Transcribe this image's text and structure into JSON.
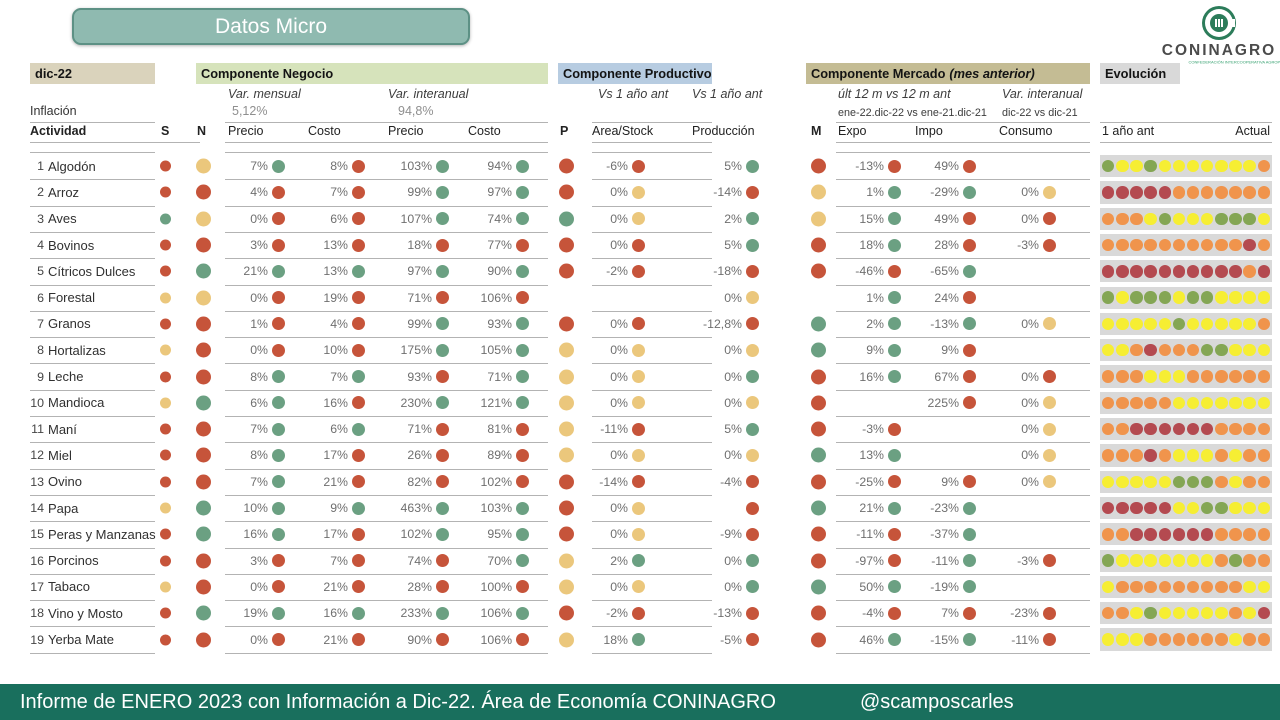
{
  "title": "Datos Micro",
  "logo": {
    "name": "CONINAGRO",
    "tagline": "CONFEDERACIÓN INTERCOOPERATIVA AGROPECUARIA"
  },
  "period_label": "dic-22",
  "inflation": {
    "label": "Inflación",
    "monthly": "5,12%",
    "yearly": "94,8%"
  },
  "col_letters": {
    "actividad": "Actividad",
    "s": "S",
    "n": "N",
    "p": "P",
    "m": "M"
  },
  "sections": {
    "negocio": {
      "title": "Componente Negocio",
      "sub1": "Var. mensual",
      "sub2": "Var. interanual",
      "col_precio1": "Precio",
      "col_costo1": "Costo",
      "col_precio2": "Precio",
      "col_costo2": "Costo"
    },
    "productivo": {
      "title": "Componente Productivo",
      "sub1": "Vs 1 año ant",
      "sub2": "Vs 1 año ant",
      "col_area": "Area/Stock",
      "col_prod": "Producción"
    },
    "mercado": {
      "title": "Componente Mercado",
      "title_note": "(mes anterior)",
      "sub1": "últ 12 m vs 12 m ant",
      "sub2": "Var. interanual",
      "note1": "ene-22.dic-22 vs ene-21.dic-21",
      "note2": "dic-22 vs dic-21",
      "col_expo": "Expo",
      "col_impo": "Impo",
      "col_consumo": "Consumo"
    },
    "evolucion": {
      "title": "Evolución",
      "left": "1 año ant",
      "right": "Actual"
    }
  },
  "palette": {
    "r": "#c6543a",
    "g": "#6ba082",
    "y": "#ebc77c"
  },
  "evolution_palette": {
    "R": "#b44a50",
    "O": "#f0944c",
    "Y": "#f6ee33",
    "G": "#84a654"
  },
  "rows": [
    {
      "num": "1",
      "name": "Algodón",
      "s": "r",
      "n": "y",
      "vmp": {
        "v": "7%",
        "c": "g"
      },
      "vmc": {
        "v": "8%",
        "c": "r"
      },
      "vip": {
        "v": "103%",
        "c": "g"
      },
      "vic": {
        "v": "94%",
        "c": "g"
      },
      "p": "r",
      "area": {
        "v": "-6%",
        "c": "r"
      },
      "prod": {
        "v": "5%",
        "c": "g"
      },
      "m": "r",
      "expo": {
        "v": "-13%",
        "c": "r"
      },
      "impo": {
        "v": "49%",
        "c": "r"
      },
      "cons": null,
      "evo": [
        "G",
        "Y",
        "Y",
        "G",
        "Y",
        "Y",
        "Y",
        "Y",
        "Y",
        "Y",
        "Y",
        "O"
      ]
    },
    {
      "num": "2",
      "name": "Arroz",
      "s": "r",
      "n": "r",
      "vmp": {
        "v": "4%",
        "c": "r"
      },
      "vmc": {
        "v": "7%",
        "c": "r"
      },
      "vip": {
        "v": "99%",
        "c": "g"
      },
      "vic": {
        "v": "97%",
        "c": "g"
      },
      "p": "r",
      "area": {
        "v": "0%",
        "c": "y"
      },
      "prod": {
        "v": "-14%",
        "c": "r"
      },
      "m": "y",
      "expo": {
        "v": "1%",
        "c": "g"
      },
      "impo": {
        "v": "-29%",
        "c": "g"
      },
      "cons": {
        "v": "0%",
        "c": "y"
      },
      "evo": [
        "R",
        "R",
        "R",
        "R",
        "R",
        "O",
        "O",
        "O",
        "O",
        "O",
        "O",
        "O"
      ]
    },
    {
      "num": "3",
      "name": "Aves",
      "s": "g",
      "n": "y",
      "vmp": {
        "v": "0%",
        "c": "r"
      },
      "vmc": {
        "v": "6%",
        "c": "r"
      },
      "vip": {
        "v": "107%",
        "c": "g"
      },
      "vic": {
        "v": "74%",
        "c": "g"
      },
      "p": "g",
      "area": {
        "v": "0%",
        "c": "y"
      },
      "prod": {
        "v": "2%",
        "c": "g"
      },
      "m": "y",
      "expo": {
        "v": "15%",
        "c": "g"
      },
      "impo": {
        "v": "49%",
        "c": "r"
      },
      "cons": {
        "v": "0%",
        "c": "r"
      },
      "evo": [
        "O",
        "O",
        "O",
        "Y",
        "G",
        "Y",
        "Y",
        "Y",
        "G",
        "G",
        "G",
        "Y"
      ]
    },
    {
      "num": "4",
      "name": "Bovinos",
      "s": "r",
      "n": "r",
      "vmp": {
        "v": "3%",
        "c": "r"
      },
      "vmc": {
        "v": "13%",
        "c": "r"
      },
      "vip": {
        "v": "18%",
        "c": "r"
      },
      "vic": {
        "v": "77%",
        "c": "r"
      },
      "p": "r",
      "area": {
        "v": "0%",
        "c": "r"
      },
      "prod": {
        "v": "5%",
        "c": "g"
      },
      "m": "r",
      "expo": {
        "v": "18%",
        "c": "g"
      },
      "impo": {
        "v": "28%",
        "c": "r"
      },
      "cons": {
        "v": "-3%",
        "c": "r"
      },
      "evo": [
        "O",
        "O",
        "O",
        "O",
        "O",
        "O",
        "O",
        "O",
        "O",
        "O",
        "R",
        "O"
      ]
    },
    {
      "num": "5",
      "name": "Cítricos Dulces",
      "s": "r",
      "n": "g",
      "vmp": {
        "v": "21%",
        "c": "g"
      },
      "vmc": {
        "v": "13%",
        "c": "g"
      },
      "vip": {
        "v": "97%",
        "c": "g"
      },
      "vic": {
        "v": "90%",
        "c": "g"
      },
      "p": "r",
      "area": {
        "v": "-2%",
        "c": "r"
      },
      "prod": {
        "v": "-18%",
        "c": "r"
      },
      "m": "r",
      "expo": {
        "v": "-46%",
        "c": "r"
      },
      "impo": {
        "v": "-65%",
        "c": "g"
      },
      "cons": null,
      "evo": [
        "R",
        "R",
        "R",
        "R",
        "R",
        "R",
        "R",
        "R",
        "R",
        "R",
        "O",
        "R"
      ]
    },
    {
      "num": "6",
      "name": "Forestal",
      "s": "y",
      "n": "y",
      "vmp": {
        "v": "0%",
        "c": "r"
      },
      "vmc": {
        "v": "19%",
        "c": "r"
      },
      "vip": {
        "v": "71%",
        "c": "r"
      },
      "vic": {
        "v": "106%",
        "c": "r"
      },
      "p": null,
      "area": null,
      "prod": {
        "v": "0%",
        "c": "y"
      },
      "m": null,
      "expo": {
        "v": "1%",
        "c": "g"
      },
      "impo": {
        "v": "24%",
        "c": "r"
      },
      "cons": null,
      "evo": [
        "G",
        "Y",
        "G",
        "G",
        "G",
        "Y",
        "G",
        "G",
        "Y",
        "Y",
        "Y",
        "Y"
      ]
    },
    {
      "num": "7",
      "name": "Granos",
      "s": "r",
      "n": "r",
      "vmp": {
        "v": "1%",
        "c": "r"
      },
      "vmc": {
        "v": "4%",
        "c": "r"
      },
      "vip": {
        "v": "99%",
        "c": "g"
      },
      "vic": {
        "v": "93%",
        "c": "g"
      },
      "p": "r",
      "area": {
        "v": "0%",
        "c": "r"
      },
      "prod": {
        "v": "-12,8%",
        "c": "r"
      },
      "m": "g",
      "expo": {
        "v": "2%",
        "c": "g"
      },
      "impo": {
        "v": "-13%",
        "c": "g"
      },
      "cons": {
        "v": "0%",
        "c": "y"
      },
      "evo": [
        "Y",
        "Y",
        "Y",
        "Y",
        "Y",
        "G",
        "Y",
        "Y",
        "Y",
        "Y",
        "Y",
        "O"
      ]
    },
    {
      "num": "8",
      "name": "Hortalizas",
      "s": "y",
      "n": "r",
      "vmp": {
        "v": "0%",
        "c": "r"
      },
      "vmc": {
        "v": "10%",
        "c": "r"
      },
      "vip": {
        "v": "175%",
        "c": "g"
      },
      "vic": {
        "v": "105%",
        "c": "g"
      },
      "p": "y",
      "area": {
        "v": "0%",
        "c": "y"
      },
      "prod": {
        "v": "0%",
        "c": "y"
      },
      "m": "g",
      "expo": {
        "v": "9%",
        "c": "g"
      },
      "impo": {
        "v": "9%",
        "c": "r"
      },
      "cons": null,
      "evo": [
        "Y",
        "Y",
        "O",
        "R",
        "O",
        "O",
        "O",
        "G",
        "G",
        "Y",
        "Y",
        "Y"
      ]
    },
    {
      "num": "9",
      "name": "Leche",
      "s": "r",
      "n": "r",
      "vmp": {
        "v": "8%",
        "c": "g"
      },
      "vmc": {
        "v": "7%",
        "c": "g"
      },
      "vip": {
        "v": "93%",
        "c": "r"
      },
      "vic": {
        "v": "71%",
        "c": "g"
      },
      "p": "y",
      "area": {
        "v": "0%",
        "c": "y"
      },
      "prod": {
        "v": "0%",
        "c": "g"
      },
      "m": "r",
      "expo": {
        "v": "16%",
        "c": "g"
      },
      "impo": {
        "v": "67%",
        "c": "r"
      },
      "cons": {
        "v": "0%",
        "c": "r"
      },
      "evo": [
        "O",
        "O",
        "O",
        "Y",
        "Y",
        "Y",
        "O",
        "O",
        "O",
        "O",
        "O",
        "O"
      ]
    },
    {
      "num": "10",
      "name": "Mandioca",
      "s": "y",
      "n": "g",
      "vmp": {
        "v": "6%",
        "c": "g"
      },
      "vmc": {
        "v": "16%",
        "c": "r"
      },
      "vip": {
        "v": "230%",
        "c": "g"
      },
      "vic": {
        "v": "121%",
        "c": "g"
      },
      "p": "y",
      "area": {
        "v": "0%",
        "c": "y"
      },
      "prod": {
        "v": "0%",
        "c": "y"
      },
      "m": "r",
      "expo": null,
      "impo": {
        "v": "225%",
        "c": "r"
      },
      "cons": {
        "v": "0%",
        "c": "y"
      },
      "evo": [
        "O",
        "O",
        "O",
        "O",
        "O",
        "Y",
        "Y",
        "Y",
        "Y",
        "Y",
        "Y",
        "Y"
      ]
    },
    {
      "num": "11",
      "name": "Maní",
      "s": "r",
      "n": "r",
      "vmp": {
        "v": "7%",
        "c": "g"
      },
      "vmc": {
        "v": "6%",
        "c": "g"
      },
      "vip": {
        "v": "71%",
        "c": "r"
      },
      "vic": {
        "v": "81%",
        "c": "r"
      },
      "p": "y",
      "area": {
        "v": "-11%",
        "c": "r"
      },
      "prod": {
        "v": "5%",
        "c": "g"
      },
      "m": "r",
      "expo": {
        "v": "-3%",
        "c": "r"
      },
      "impo": null,
      "cons": {
        "v": "0%",
        "c": "y"
      },
      "evo": [
        "O",
        "O",
        "R",
        "R",
        "R",
        "R",
        "R",
        "R",
        "O",
        "O",
        "O",
        "O"
      ]
    },
    {
      "num": "12",
      "name": "Miel",
      "s": "r",
      "n": "r",
      "vmp": {
        "v": "8%",
        "c": "g"
      },
      "vmc": {
        "v": "17%",
        "c": "r"
      },
      "vip": {
        "v": "26%",
        "c": "r"
      },
      "vic": {
        "v": "89%",
        "c": "r"
      },
      "p": "y",
      "area": {
        "v": "0%",
        "c": "y"
      },
      "prod": {
        "v": "0%",
        "c": "y"
      },
      "m": "g",
      "expo": {
        "v": "13%",
        "c": "g"
      },
      "impo": null,
      "cons": {
        "v": "0%",
        "c": "y"
      },
      "evo": [
        "O",
        "O",
        "O",
        "R",
        "O",
        "Y",
        "Y",
        "Y",
        "O",
        "Y",
        "O",
        "O"
      ]
    },
    {
      "num": "13",
      "name": "Ovino",
      "s": "r",
      "n": "r",
      "vmp": {
        "v": "7%",
        "c": "g"
      },
      "vmc": {
        "v": "21%",
        "c": "r"
      },
      "vip": {
        "v": "82%",
        "c": "r"
      },
      "vic": {
        "v": "102%",
        "c": "r"
      },
      "p": "r",
      "area": {
        "v": "-14%",
        "c": "r"
      },
      "prod": {
        "v": "-4%",
        "c": "r"
      },
      "m": "r",
      "expo": {
        "v": "-25%",
        "c": "r"
      },
      "impo": {
        "v": "9%",
        "c": "r"
      },
      "cons": {
        "v": "0%",
        "c": "y"
      },
      "evo": [
        "Y",
        "Y",
        "Y",
        "Y",
        "Y",
        "G",
        "G",
        "G",
        "O",
        "Y",
        "O",
        "O"
      ]
    },
    {
      "num": "14",
      "name": "Papa",
      "s": "y",
      "n": "g",
      "vmp": {
        "v": "10%",
        "c": "g"
      },
      "vmc": {
        "v": "9%",
        "c": "g"
      },
      "vip": {
        "v": "463%",
        "c": "g"
      },
      "vic": {
        "v": "103%",
        "c": "g"
      },
      "p": "r",
      "area": {
        "v": "0%",
        "c": "y"
      },
      "prod": {
        "v": "",
        "c": "r"
      },
      "m": "g",
      "expo": {
        "v": "21%",
        "c": "g"
      },
      "impo": {
        "v": "-23%",
        "c": "g"
      },
      "cons": null,
      "evo": [
        "R",
        "R",
        "R",
        "R",
        "R",
        "Y",
        "Y",
        "G",
        "G",
        "Y",
        "Y",
        "Y"
      ]
    },
    {
      "num": "15",
      "name": "Peras y Manzanas",
      "s": "r",
      "n": "g",
      "vmp": {
        "v": "16%",
        "c": "g"
      },
      "vmc": {
        "v": "17%",
        "c": "r"
      },
      "vip": {
        "v": "102%",
        "c": "g"
      },
      "vic": {
        "v": "95%",
        "c": "g"
      },
      "p": "r",
      "area": {
        "v": "0%",
        "c": "y"
      },
      "prod": {
        "v": "-9%",
        "c": "r"
      },
      "m": "r",
      "expo": {
        "v": "-11%",
        "c": "r"
      },
      "impo": {
        "v": "-37%",
        "c": "g"
      },
      "cons": null,
      "evo": [
        "O",
        "O",
        "R",
        "R",
        "R",
        "R",
        "R",
        "R",
        "O",
        "O",
        "O",
        "O"
      ]
    },
    {
      "num": "16",
      "name": "Porcinos",
      "s": "r",
      "n": "r",
      "vmp": {
        "v": "3%",
        "c": "r"
      },
      "vmc": {
        "v": "7%",
        "c": "r"
      },
      "vip": {
        "v": "74%",
        "c": "r"
      },
      "vic": {
        "v": "70%",
        "c": "g"
      },
      "p": "y",
      "area": {
        "v": "2%",
        "c": "g"
      },
      "prod": {
        "v": "0%",
        "c": "g"
      },
      "m": "r",
      "expo": {
        "v": "-97%",
        "c": "r"
      },
      "impo": {
        "v": "-11%",
        "c": "g"
      },
      "cons": {
        "v": "-3%",
        "c": "r"
      },
      "evo": [
        "G",
        "Y",
        "Y",
        "Y",
        "Y",
        "Y",
        "Y",
        "Y",
        "O",
        "G",
        "O",
        "O"
      ]
    },
    {
      "num": "17",
      "name": "Tabaco",
      "s": "y",
      "n": "r",
      "vmp": {
        "v": "0%",
        "c": "r"
      },
      "vmc": {
        "v": "21%",
        "c": "r"
      },
      "vip": {
        "v": "28%",
        "c": "r"
      },
      "vic": {
        "v": "100%",
        "c": "r"
      },
      "p": "y",
      "area": {
        "v": "0%",
        "c": "y"
      },
      "prod": {
        "v": "0%",
        "c": "g"
      },
      "m": "g",
      "expo": {
        "v": "50%",
        "c": "g"
      },
      "impo": {
        "v": "-19%",
        "c": "g"
      },
      "cons": null,
      "evo": [
        "Y",
        "O",
        "O",
        "O",
        "O",
        "O",
        "O",
        "O",
        "O",
        "O",
        "Y",
        "Y"
      ]
    },
    {
      "num": "18",
      "name": "Vino y Mosto",
      "s": "r",
      "n": "g",
      "vmp": {
        "v": "19%",
        "c": "g"
      },
      "vmc": {
        "v": "16%",
        "c": "g"
      },
      "vip": {
        "v": "233%",
        "c": "g"
      },
      "vic": {
        "v": "106%",
        "c": "g"
      },
      "p": "r",
      "area": {
        "v": "-2%",
        "c": "r"
      },
      "prod": {
        "v": "-13%",
        "c": "r"
      },
      "m": "r",
      "expo": {
        "v": "-4%",
        "c": "r"
      },
      "impo": {
        "v": "7%",
        "c": "r"
      },
      "cons": {
        "v": "-23%",
        "c": "r"
      },
      "evo": [
        "O",
        "O",
        "Y",
        "G",
        "Y",
        "Y",
        "Y",
        "Y",
        "Y",
        "O",
        "Y",
        "R"
      ]
    },
    {
      "num": "19",
      "name": "Yerba Mate",
      "s": "r",
      "n": "r",
      "vmp": {
        "v": "0%",
        "c": "r"
      },
      "vmc": {
        "v": "21%",
        "c": "r"
      },
      "vip": {
        "v": "90%",
        "c": "r"
      },
      "vic": {
        "v": "106%",
        "c": "r"
      },
      "p": "y",
      "area": {
        "v": "18%",
        "c": "g"
      },
      "prod": {
        "v": "-5%",
        "c": "r"
      },
      "m": "r",
      "expo": {
        "v": "46%",
        "c": "g"
      },
      "impo": {
        "v": "-15%",
        "c": "g"
      },
      "cons": {
        "v": "-11%",
        "c": "r"
      },
      "evo": [
        "Y",
        "Y",
        "Y",
        "O",
        "O",
        "O",
        "O",
        "O",
        "O",
        "Y",
        "O",
        "O"
      ]
    }
  ],
  "footer": {
    "text": "Informe de ENERO 2023 con Información a Dic-22. Área de Economía CONINAGRO",
    "handle": "@scamposcarles"
  }
}
